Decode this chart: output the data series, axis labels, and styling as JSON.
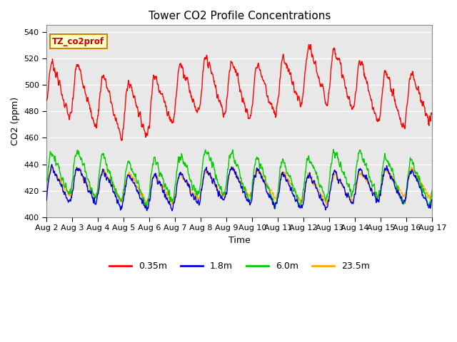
{
  "title": "Tower CO2 Profile Concentrations",
  "xlabel": "Time",
  "ylabel": "CO2 (ppm)",
  "ylim": [
    400,
    545
  ],
  "yticks": [
    400,
    420,
    440,
    460,
    480,
    500,
    520,
    540
  ],
  "legend_label": "TZ_co2prof",
  "series_labels": [
    "0.35m",
    "1.8m",
    "6.0m",
    "23.5m"
  ],
  "series_colors": [
    "#ff0000",
    "#0000dd",
    "#00cc00",
    "#ffaa00"
  ],
  "line_width": 1.0,
  "background_color": "#ffffff",
  "plot_bg_color": "#e8e8e8",
  "grid_color": "#ffffff",
  "n_points": 1440,
  "seed": 7
}
